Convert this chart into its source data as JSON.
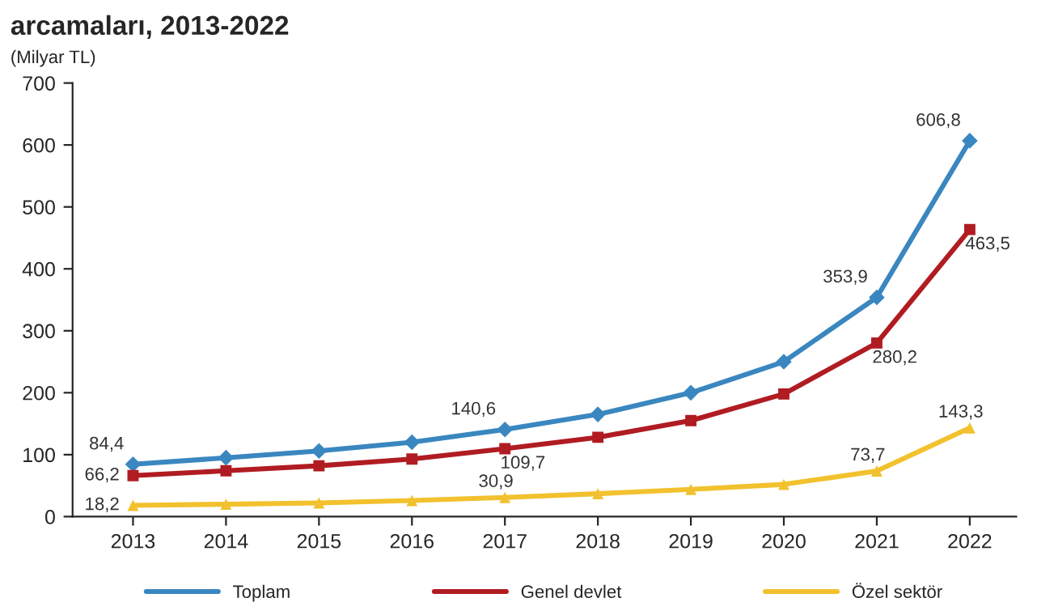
{
  "chart_data": {
    "type": "line",
    "title": "arcamaları, 2013-2022",
    "ylabel": "(Milyar TL)",
    "categories": [
      "2013",
      "2014",
      "2015",
      "2016",
      "2017",
      "2018",
      "2019",
      "2020",
      "2021",
      "2022"
    ],
    "series": [
      {
        "name": "Toplam",
        "color": "#3a87c0",
        "marker": "diamond",
        "values": [
          84.4,
          95,
          106,
          120,
          140.6,
          165,
          200,
          250,
          353.9,
          606.8
        ],
        "value_labels": [
          "84,4",
          null,
          null,
          null,
          "140,6",
          null,
          null,
          null,
          "353,9",
          "606,8"
        ]
      },
      {
        "name": "Genel devlet",
        "color": "#b01c22",
        "marker": "square",
        "values": [
          66.2,
          74,
          82,
          93,
          109.7,
          128,
          155,
          198,
          280.2,
          463.5
        ],
        "value_labels": [
          "66,2",
          null,
          null,
          null,
          "109,7",
          null,
          null,
          null,
          "280,2",
          "463,5"
        ]
      },
      {
        "name": "Özel sektör",
        "color": "#f2c12e",
        "marker": "triangle",
        "values": [
          18.2,
          20,
          22,
          26,
          30.9,
          37,
          44,
          52,
          73.7,
          143.3
        ],
        "value_labels": [
          "18,2",
          null,
          null,
          null,
          "30,9",
          null,
          null,
          null,
          "73,7",
          "143,3"
        ]
      }
    ],
    "ylim": [
      0,
      700
    ],
    "yticks": [
      0,
      100,
      200,
      300,
      400,
      500,
      600,
      700
    ],
    "grid": false,
    "legend": "bottom"
  }
}
